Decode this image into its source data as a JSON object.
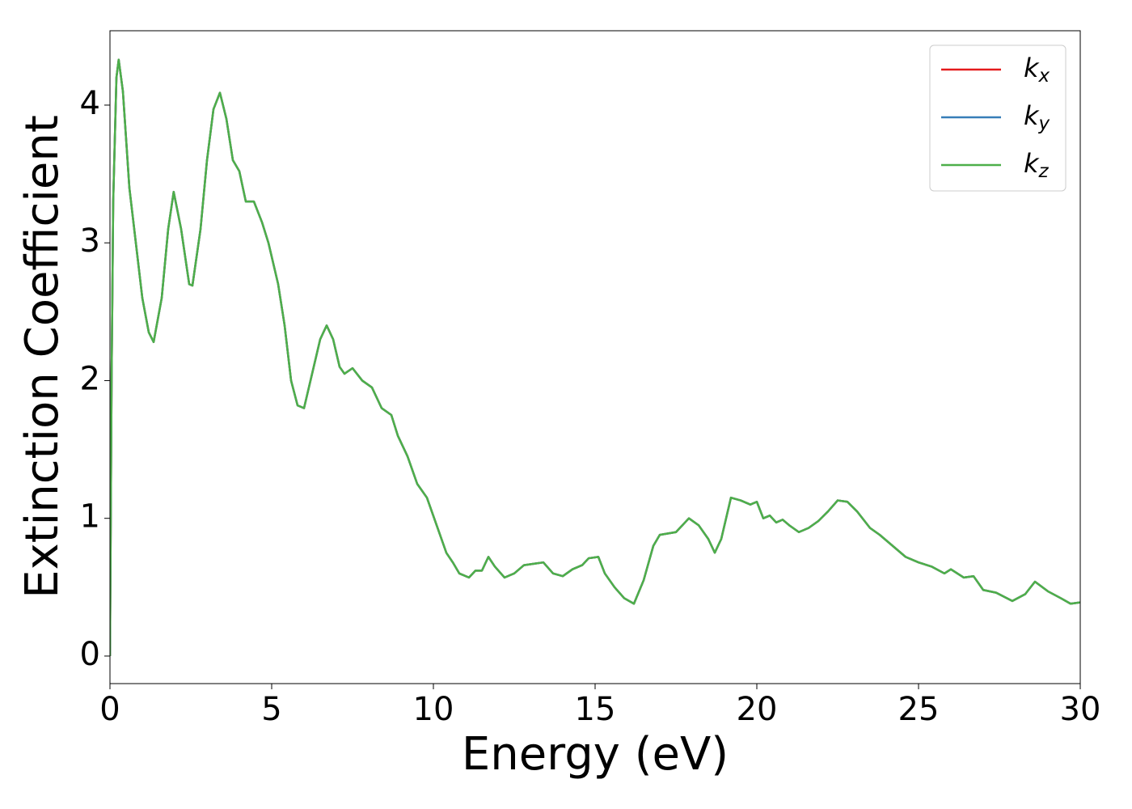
{
  "chart_data": {
    "type": "line",
    "x_label": "Energy (eV)",
    "y_label": "Extinction Coefficient",
    "xlim": [
      0,
      30
    ],
    "ylim": [
      -0.2,
      4.54
    ],
    "xticks": [
      0,
      5,
      10,
      15,
      20,
      25,
      30
    ],
    "yticks": [
      0,
      1,
      2,
      3,
      4
    ],
    "legend": "upper right",
    "x": [
      0,
      0.05,
      0.1,
      0.2,
      0.27,
      0.4,
      0.6,
      0.8,
      1.0,
      1.2,
      1.35,
      1.6,
      1.8,
      1.97,
      2.2,
      2.45,
      2.55,
      2.8,
      3.0,
      3.2,
      3.4,
      3.6,
      3.8,
      4.0,
      4.2,
      4.45,
      4.7,
      4.9,
      5.2,
      5.4,
      5.6,
      5.8,
      6.0,
      6.2,
      6.5,
      6.7,
      6.9,
      7.1,
      7.25,
      7.5,
      7.8,
      8.1,
      8.4,
      8.7,
      8.9,
      9.2,
      9.5,
      9.8,
      10.1,
      10.4,
      10.6,
      10.8,
      11.1,
      11.3,
      11.5,
      11.7,
      11.9,
      12.2,
      12.5,
      12.8,
      13.1,
      13.4,
      13.7,
      14.0,
      14.3,
      14.6,
      14.8,
      15.1,
      15.3,
      15.6,
      15.9,
      16.2,
      16.5,
      16.8,
      17.0,
      17.5,
      17.9,
      18.2,
      18.5,
      18.7,
      18.9,
      19.2,
      19.5,
      19.8,
      20.0,
      20.2,
      20.4,
      20.6,
      20.8,
      21.0,
      21.3,
      21.6,
      21.9,
      22.2,
      22.5,
      22.8,
      23.1,
      23.5,
      23.8,
      24.2,
      24.6,
      25.0,
      25.4,
      25.8,
      26.0,
      26.4,
      26.7,
      27.0,
      27.4,
      27.9,
      28.3,
      28.6,
      29.0,
      29.4,
      29.7,
      30.0
    ],
    "series": [
      {
        "name": "kx",
        "color": "#e41a1c",
        "values": [
          0,
          2.0,
          3.3,
          4.2,
          4.33,
          4.1,
          3.4,
          3.0,
          2.6,
          2.35,
          2.28,
          2.6,
          3.1,
          3.37,
          3.1,
          2.7,
          2.69,
          3.1,
          3.6,
          3.97,
          4.09,
          3.9,
          3.6,
          3.52,
          3.3,
          3.3,
          3.15,
          3.0,
          2.7,
          2.4,
          2.0,
          1.82,
          1.8,
          2.0,
          2.3,
          2.4,
          2.3,
          2.1,
          2.05,
          2.09,
          2.0,
          1.95,
          1.8,
          1.75,
          1.6,
          1.45,
          1.25,
          1.15,
          0.95,
          0.75,
          0.68,
          0.6,
          0.57,
          0.62,
          0.62,
          0.72,
          0.65,
          0.57,
          0.6,
          0.66,
          0.67,
          0.68,
          0.6,
          0.58,
          0.63,
          0.66,
          0.71,
          0.72,
          0.6,
          0.5,
          0.42,
          0.38,
          0.55,
          0.8,
          0.88,
          0.9,
          1.0,
          0.95,
          0.85,
          0.75,
          0.85,
          1.15,
          1.13,
          1.1,
          1.12,
          1.0,
          1.02,
          0.97,
          0.99,
          0.95,
          0.9,
          0.93,
          0.98,
          1.05,
          1.13,
          1.12,
          1.05,
          0.93,
          0.88,
          0.8,
          0.72,
          0.68,
          0.65,
          0.6,
          0.63,
          0.57,
          0.58,
          0.48,
          0.46,
          0.4,
          0.45,
          0.54,
          0.47,
          0.42,
          0.38,
          0.39
        ]
      },
      {
        "name": "ky",
        "color": "#377eb8",
        "values": [
          0,
          2.0,
          3.3,
          4.2,
          4.33,
          4.1,
          3.4,
          3.0,
          2.6,
          2.35,
          2.28,
          2.6,
          3.1,
          3.37,
          3.1,
          2.7,
          2.69,
          3.1,
          3.6,
          3.97,
          4.09,
          3.9,
          3.6,
          3.52,
          3.3,
          3.3,
          3.15,
          3.0,
          2.7,
          2.4,
          2.0,
          1.82,
          1.8,
          2.0,
          2.3,
          2.4,
          2.3,
          2.1,
          2.05,
          2.09,
          2.0,
          1.95,
          1.8,
          1.75,
          1.6,
          1.45,
          1.25,
          1.15,
          0.95,
          0.75,
          0.68,
          0.6,
          0.57,
          0.62,
          0.62,
          0.72,
          0.65,
          0.57,
          0.6,
          0.66,
          0.67,
          0.68,
          0.6,
          0.58,
          0.63,
          0.66,
          0.71,
          0.72,
          0.6,
          0.5,
          0.42,
          0.38,
          0.55,
          0.8,
          0.88,
          0.9,
          1.0,
          0.95,
          0.85,
          0.75,
          0.85,
          1.15,
          1.13,
          1.1,
          1.12,
          1.0,
          1.02,
          0.97,
          0.99,
          0.95,
          0.9,
          0.93,
          0.98,
          1.05,
          1.13,
          1.12,
          1.05,
          0.93,
          0.88,
          0.8,
          0.72,
          0.68,
          0.65,
          0.6,
          0.63,
          0.57,
          0.58,
          0.48,
          0.46,
          0.4,
          0.45,
          0.54,
          0.47,
          0.42,
          0.38,
          0.39
        ]
      },
      {
        "name": "kz",
        "color": "#4daf4a",
        "values": [
          0,
          2.0,
          3.3,
          4.2,
          4.33,
          4.1,
          3.4,
          3.0,
          2.6,
          2.35,
          2.28,
          2.6,
          3.1,
          3.37,
          3.1,
          2.7,
          2.69,
          3.1,
          3.6,
          3.97,
          4.09,
          3.9,
          3.6,
          3.52,
          3.3,
          3.3,
          3.15,
          3.0,
          2.7,
          2.4,
          2.0,
          1.82,
          1.8,
          2.0,
          2.3,
          2.4,
          2.3,
          2.1,
          2.05,
          2.09,
          2.0,
          1.95,
          1.8,
          1.75,
          1.6,
          1.45,
          1.25,
          1.15,
          0.95,
          0.75,
          0.68,
          0.6,
          0.57,
          0.62,
          0.62,
          0.72,
          0.65,
          0.57,
          0.6,
          0.66,
          0.67,
          0.68,
          0.6,
          0.58,
          0.63,
          0.66,
          0.71,
          0.72,
          0.6,
          0.5,
          0.42,
          0.38,
          0.55,
          0.8,
          0.88,
          0.9,
          1.0,
          0.95,
          0.85,
          0.75,
          0.85,
          1.15,
          1.13,
          1.1,
          1.12,
          1.0,
          1.02,
          0.97,
          0.99,
          0.95,
          0.9,
          0.93,
          0.98,
          1.05,
          1.13,
          1.12,
          1.05,
          0.93,
          0.88,
          0.8,
          0.72,
          0.68,
          0.65,
          0.6,
          0.63,
          0.57,
          0.58,
          0.48,
          0.46,
          0.4,
          0.45,
          0.54,
          0.47,
          0.42,
          0.38,
          0.39
        ]
      }
    ]
  }
}
